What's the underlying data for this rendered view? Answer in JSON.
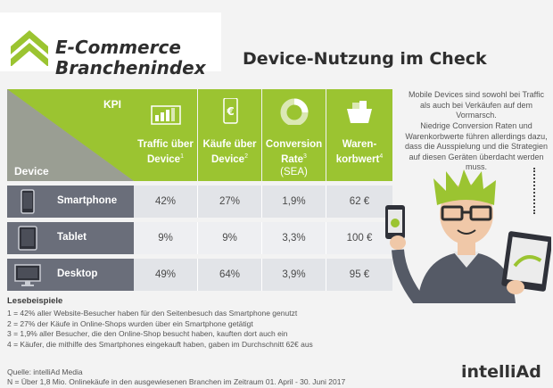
{
  "header": {
    "brand_line1": "E-Commerce",
    "brand_line2": "Branchenindex",
    "title": "Device-Nutzung im Check",
    "accent_color": "#9bc431"
  },
  "chart_data": {
    "type": "table",
    "corner": {
      "top_label": "KPI",
      "bottom_label": "Device"
    },
    "columns": [
      {
        "label_lines": [
          "Traffic über",
          "Device"
        ],
        "footnote": "1",
        "icon": "traffic-bars-icon"
      },
      {
        "label_lines": [
          "Käufe über",
          "Device"
        ],
        "footnote": "2",
        "icon": "euro-phone-icon"
      },
      {
        "label_lines": [
          "Conversion",
          "Rate"
        ],
        "footnote": "3",
        "sub": "(SEA)",
        "icon": "pie-ring-icon"
      },
      {
        "label_lines": [
          "Waren-",
          "korbwert"
        ],
        "footnote": "4",
        "icon": "shopping-basket-icon"
      }
    ],
    "rows": [
      {
        "device": "Smartphone",
        "icon": "smartphone-icon",
        "values": [
          "42%",
          "27%",
          "1,9%",
          "62 €"
        ]
      },
      {
        "device": "Tablet",
        "icon": "tablet-icon",
        "values": [
          "9%",
          "9%",
          "3,3%",
          "100 €"
        ]
      },
      {
        "device": "Desktop",
        "icon": "desktop-icon",
        "values": [
          "49%",
          "64%",
          "3,9%",
          "95 €"
        ]
      }
    ]
  },
  "side_text": {
    "p1": "Mobile Devices sind sowohl bei Traffic als auch bei Verkäufen auf dem Vormarsch.",
    "p2": "Niedrige Conversion Raten und Warenkorbwerte führen allerdings dazu, dass die Ausspielung und die Strategien auf diesen Geräten überdacht werden muss."
  },
  "legend": {
    "title": "Lesebeispiele",
    "items": [
      "1 = 42% aller Website-Besucher haben für den Seitenbesuch das Smartphone genutzt",
      "2 = 27% der Käufe in Online-Shops wurden über ein Smartphone getätigt",
      "3 = 1,9% aller Besucher, die den Online-Shop besucht haben, kauften dort auch ein",
      "4 = Käufer, die mithilfe des Smartphones eingekauft haben, gaben im Durchschnitt 62€ aus"
    ]
  },
  "source": {
    "line1": "Quelle: intelliAd Media",
    "line2": "N = Über 1,8 Mio. Onlinekäufe in den ausgewiesenen Branchen im Zeitraum 01. April - 30. Juni 2017"
  },
  "footer_logo": "intelliAd"
}
